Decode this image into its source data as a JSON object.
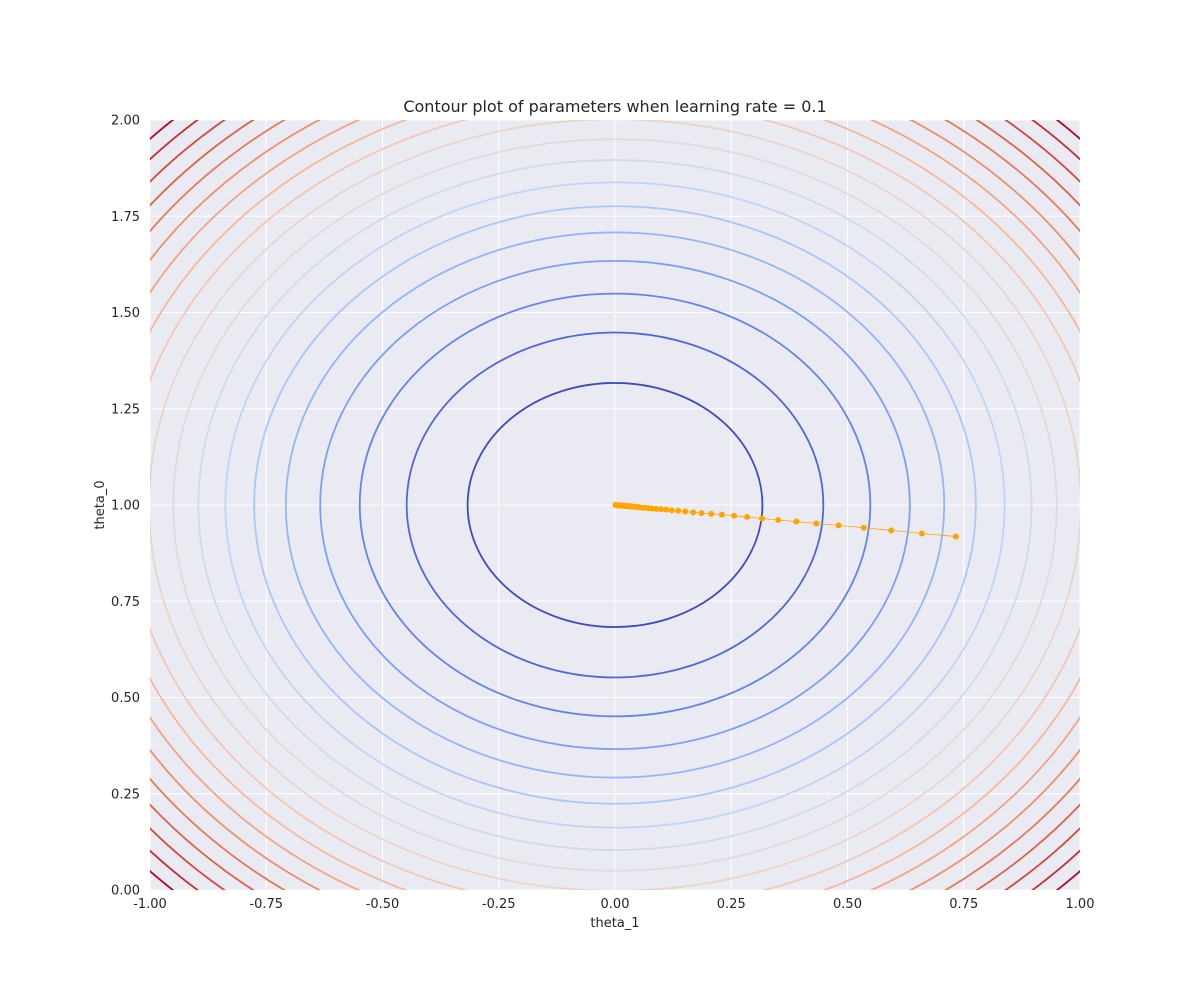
{
  "chart_data": {
    "type": "contour",
    "title": "Contour plot of parameters when learning rate = 0.1",
    "xlabel": "theta_1",
    "ylabel": "theta_0",
    "xlim": [
      -1.0,
      1.0
    ],
    "ylim": [
      0.0,
      2.0
    ],
    "x_ticks": [
      "-1.00",
      "-0.75",
      "-0.50",
      "-0.25",
      "0.00",
      "0.25",
      "0.50",
      "0.75",
      "1.00"
    ],
    "y_ticks": [
      "0.00",
      "0.25",
      "0.50",
      "0.75",
      "1.00",
      "1.25",
      "1.50",
      "1.75",
      "2.00"
    ],
    "grid": true,
    "background_color": "#eaeaf2",
    "grid_color": "#ffffff",
    "contour": {
      "center": [
        0.0,
        1.0
      ],
      "colormap": "coolwarm",
      "level_radii_theta1": [
        0.317,
        0.448,
        0.549,
        0.634,
        0.708,
        0.776,
        0.838,
        0.896,
        0.95,
        1.002,
        1.051,
        1.097,
        1.142,
        1.185,
        1.227,
        1.267,
        1.306,
        1.344,
        1.38
      ],
      "theta0_scale": 1.0,
      "colors": [
        "#3b4cc0",
        "#4d68d7",
        "#6384eb",
        "#7b9ff9",
        "#93b5fe",
        "#aac7fd",
        "#c0d4f5",
        "#d1dae9",
        "#dddcdc",
        "#ead4c8",
        "#f2c8b4",
        "#f6b89c",
        "#f5a483",
        "#f08f6b",
        "#e67a5a",
        "#dc6248",
        "#d1493b",
        "#c43032",
        "#b40426"
      ]
    },
    "path": {
      "color": "#ffa500",
      "points": [
        [
          0.733,
          0.918
        ],
        [
          0.66,
          0.926
        ],
        [
          0.594,
          0.934
        ],
        [
          0.535,
          0.941
        ],
        [
          0.481,
          0.947
        ],
        [
          0.433,
          0.952
        ],
        [
          0.39,
          0.957
        ],
        [
          0.351,
          0.961
        ],
        [
          0.316,
          0.965
        ],
        [
          0.284,
          0.969
        ],
        [
          0.256,
          0.972
        ],
        [
          0.23,
          0.975
        ],
        [
          0.207,
          0.977
        ],
        [
          0.186,
          0.979
        ],
        [
          0.168,
          0.981
        ],
        [
          0.151,
          0.983
        ],
        [
          0.136,
          0.985
        ],
        [
          0.122,
          0.986
        ],
        [
          0.11,
          0.988
        ],
        [
          0.099,
          0.989
        ],
        [
          0.089,
          0.99
        ],
        [
          0.08,
          0.991
        ],
        [
          0.072,
          0.992
        ],
        [
          0.065,
          0.993
        ],
        [
          0.058,
          0.993
        ],
        [
          0.052,
          0.994
        ],
        [
          0.047,
          0.995
        ],
        [
          0.042,
          0.995
        ],
        [
          0.038,
          0.996
        ],
        [
          0.034,
          0.996
        ],
        [
          0.031,
          0.997
        ],
        [
          0.028,
          0.997
        ],
        [
          0.025,
          0.997
        ],
        [
          0.022,
          0.998
        ],
        [
          0.02,
          0.998
        ],
        [
          0.018,
          0.998
        ],
        [
          0.016,
          0.998
        ],
        [
          0.014,
          0.998
        ],
        [
          0.013,
          0.999
        ],
        [
          0.012,
          0.999
        ],
        [
          0.01,
          0.999
        ],
        [
          0.009,
          0.999
        ],
        [
          0.008,
          0.999
        ],
        [
          0.007,
          0.999
        ],
        [
          0.006,
          0.999
        ],
        [
          0.005,
          1.0
        ],
        [
          0.004,
          1.0
        ],
        [
          0.003,
          1.0
        ],
        [
          0.002,
          1.0
        ],
        [
          0.001,
          1.0
        ]
      ]
    }
  }
}
